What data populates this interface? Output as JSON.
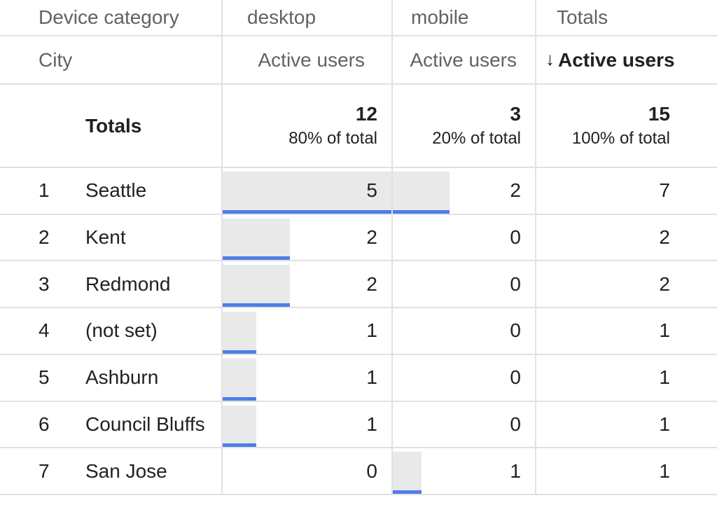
{
  "header": {
    "dimension_column_label": "Device category",
    "row_dimension_label": "City",
    "metric_columns": [
      {
        "label": "desktop",
        "metric_label": "Active users"
      },
      {
        "label": "mobile",
        "metric_label": "Active users"
      },
      {
        "label": "Totals",
        "metric_label": "Active users",
        "sort_arrow": "↓",
        "sorted": "descending"
      }
    ]
  },
  "totals_row": {
    "label": "Totals",
    "cells": [
      {
        "value": 12,
        "share": "80% of total"
      },
      {
        "value": 3,
        "share": "20% of total"
      },
      {
        "value": 15,
        "share": "100% of total"
      }
    ]
  },
  "rows": [
    {
      "rank": 1,
      "city": "Seattle",
      "desktop": 5,
      "mobile": 2,
      "total": 7
    },
    {
      "rank": 2,
      "city": "Kent",
      "desktop": 2,
      "mobile": 0,
      "total": 2
    },
    {
      "rank": 3,
      "city": "Redmond",
      "desktop": 2,
      "mobile": 0,
      "total": 2
    },
    {
      "rank": 4,
      "city": "(not set)",
      "desktop": 1,
      "mobile": 0,
      "total": 1
    },
    {
      "rank": 5,
      "city": "Ashburn",
      "desktop": 1,
      "mobile": 0,
      "total": 1
    },
    {
      "rank": 6,
      "city": "Council Bluffs",
      "desktop": 1,
      "mobile": 0,
      "total": 1
    },
    {
      "rank": 7,
      "city": "San Jose",
      "desktop": 0,
      "mobile": 1,
      "total": 1
    }
  ],
  "colors": {
    "bar_fill": "#e9e9e9",
    "bar_accent": "#4e7de8",
    "header_text": "#5f6368",
    "body_text": "#202124",
    "grid_line": "#e1e1e1"
  }
}
